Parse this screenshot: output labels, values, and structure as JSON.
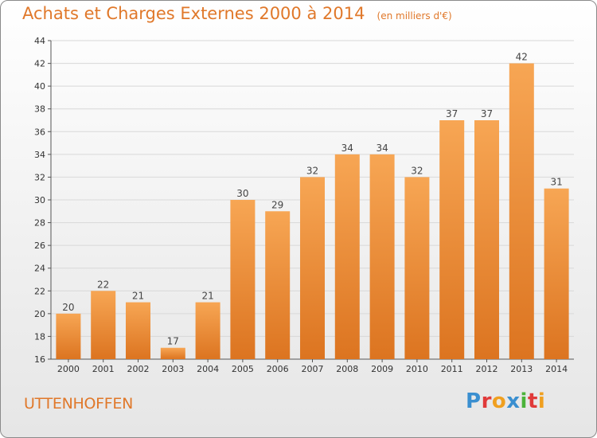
{
  "title": "Achats et Charges Externes 2000 à 2014",
  "subtitle": "(en milliers d'€)",
  "place": "UTTENHOFFEN",
  "logo": {
    "text": "Proxiti",
    "letters": [
      {
        "ch": "P",
        "color": "#3a8fd0"
      },
      {
        "ch": "r",
        "color": "#e03a3a"
      },
      {
        "ch": "o",
        "color": "#f0a020"
      },
      {
        "ch": "x",
        "color": "#3a8fd0"
      },
      {
        "ch": "i",
        "color": "#4bb33a"
      },
      {
        "ch": "t",
        "color": "#e03a3a"
      },
      {
        "ch": "i",
        "color": "#f0a020"
      }
    ]
  },
  "colors": {
    "bar_light": "#f7a654",
    "bar_dark": "#dc7420",
    "title": "#e0782a",
    "grid": "#d8d8d8"
  },
  "chart_data": {
    "type": "bar",
    "categories": [
      "2000",
      "2001",
      "2002",
      "2003",
      "2004",
      "2005",
      "2006",
      "2007",
      "2008",
      "2009",
      "2010",
      "2011",
      "2012",
      "2013",
      "2014"
    ],
    "values": [
      20,
      22,
      21,
      17,
      21,
      30,
      29,
      32,
      34,
      34,
      32,
      37,
      37,
      42,
      31
    ],
    "ylim": [
      16,
      44
    ],
    "yticks": [
      16,
      18,
      20,
      22,
      24,
      26,
      28,
      30,
      32,
      34,
      36,
      38,
      40,
      42,
      44
    ],
    "grid": true,
    "xlabel": "",
    "ylabel": ""
  }
}
